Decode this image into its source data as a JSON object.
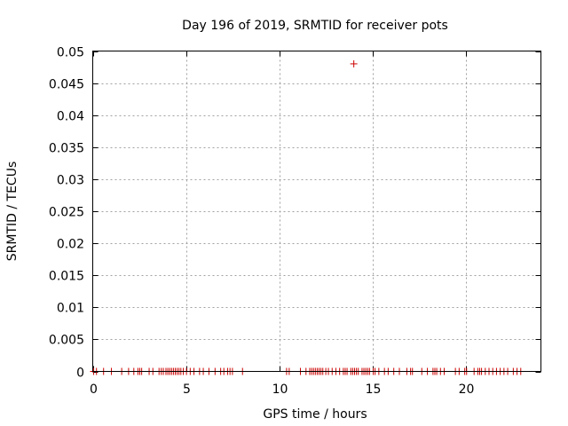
{
  "chart_data": {
    "type": "scatter",
    "title": "Day 196 of 2019, SRMTID for receiver pots",
    "xlabel": "GPS time / hours",
    "ylabel": "SRMTID / TECUs",
    "xlim": [
      0,
      24
    ],
    "ylim": [
      0,
      0.05
    ],
    "grid": true,
    "marker": "+",
    "color": "#cc0000",
    "x_ticks": [
      0,
      5,
      10,
      15,
      20
    ],
    "x_tick_labels": [
      "0",
      "5",
      "10",
      "15",
      "20"
    ],
    "y_ticks": [
      0,
      0.005,
      0.01,
      0.015,
      0.02,
      0.025,
      0.03,
      0.035,
      0.04,
      0.045,
      0.05
    ],
    "y_tick_labels": [
      "0",
      "0.005",
      "0.01",
      "0.015",
      "0.02",
      "0.025",
      "0.03",
      "0.035",
      "0.04",
      "0.045",
      "0.05"
    ],
    "points": [
      {
        "x": 13.98,
        "y": 0.048
      },
      {
        "x": 0.05,
        "y": 0
      },
      {
        "x": 0.2,
        "y": 0
      },
      {
        "x": 0.58,
        "y": 0
      },
      {
        "x": 1.0,
        "y": 0
      },
      {
        "x": 1.55,
        "y": 0
      },
      {
        "x": 1.92,
        "y": 0
      },
      {
        "x": 2.2,
        "y": 0
      },
      {
        "x": 2.42,
        "y": 0
      },
      {
        "x": 2.52,
        "y": 0
      },
      {
        "x": 2.62,
        "y": 0
      },
      {
        "x": 3.02,
        "y": 0
      },
      {
        "x": 3.22,
        "y": 0
      },
      {
        "x": 3.55,
        "y": 0
      },
      {
        "x": 3.67,
        "y": 0
      },
      {
        "x": 3.78,
        "y": 0
      },
      {
        "x": 3.92,
        "y": 0
      },
      {
        "x": 4.02,
        "y": 0
      },
      {
        "x": 4.12,
        "y": 0
      },
      {
        "x": 4.22,
        "y": 0
      },
      {
        "x": 4.32,
        "y": 0
      },
      {
        "x": 4.42,
        "y": 0
      },
      {
        "x": 4.52,
        "y": 0
      },
      {
        "x": 4.62,
        "y": 0
      },
      {
        "x": 4.72,
        "y": 0
      },
      {
        "x": 4.85,
        "y": 0
      },
      {
        "x": 5.02,
        "y": 0
      },
      {
        "x": 5.22,
        "y": 0
      },
      {
        "x": 5.42,
        "y": 0
      },
      {
        "x": 5.72,
        "y": 0
      },
      {
        "x": 5.92,
        "y": 0
      },
      {
        "x": 6.22,
        "y": 0
      },
      {
        "x": 6.55,
        "y": 0
      },
      {
        "x": 6.85,
        "y": 0
      },
      {
        "x": 7.02,
        "y": 0
      },
      {
        "x": 7.22,
        "y": 0
      },
      {
        "x": 7.35,
        "y": 0
      },
      {
        "x": 7.48,
        "y": 0
      },
      {
        "x": 8.02,
        "y": 0
      },
      {
        "x": 10.38,
        "y": 0
      },
      {
        "x": 10.52,
        "y": 0
      },
      {
        "x": 11.12,
        "y": 0
      },
      {
        "x": 11.42,
        "y": 0
      },
      {
        "x": 11.62,
        "y": 0
      },
      {
        "x": 11.72,
        "y": 0
      },
      {
        "x": 11.82,
        "y": 0
      },
      {
        "x": 11.92,
        "y": 0
      },
      {
        "x": 12.02,
        "y": 0
      },
      {
        "x": 12.12,
        "y": 0
      },
      {
        "x": 12.22,
        "y": 0
      },
      {
        "x": 12.32,
        "y": 0
      },
      {
        "x": 12.48,
        "y": 0
      },
      {
        "x": 12.62,
        "y": 0
      },
      {
        "x": 12.82,
        "y": 0
      },
      {
        "x": 13.02,
        "y": 0
      },
      {
        "x": 13.22,
        "y": 0
      },
      {
        "x": 13.42,
        "y": 0
      },
      {
        "x": 13.52,
        "y": 0
      },
      {
        "x": 13.62,
        "y": 0
      },
      {
        "x": 13.82,
        "y": 0
      },
      {
        "x": 13.92,
        "y": 0
      },
      {
        "x": 14.02,
        "y": 0
      },
      {
        "x": 14.12,
        "y": 0
      },
      {
        "x": 14.22,
        "y": 0
      },
      {
        "x": 14.42,
        "y": 0
      },
      {
        "x": 14.52,
        "y": 0
      },
      {
        "x": 14.62,
        "y": 0
      },
      {
        "x": 14.72,
        "y": 0
      },
      {
        "x": 14.82,
        "y": 0
      },
      {
        "x": 15.02,
        "y": 0
      },
      {
        "x": 15.12,
        "y": 0
      },
      {
        "x": 15.32,
        "y": 0
      },
      {
        "x": 15.62,
        "y": 0
      },
      {
        "x": 15.82,
        "y": 0
      },
      {
        "x": 16.12,
        "y": 0
      },
      {
        "x": 16.42,
        "y": 0
      },
      {
        "x": 16.82,
        "y": 0
      },
      {
        "x": 17.02,
        "y": 0
      },
      {
        "x": 17.12,
        "y": 0
      },
      {
        "x": 17.62,
        "y": 0
      },
      {
        "x": 17.92,
        "y": 0
      },
      {
        "x": 18.22,
        "y": 0
      },
      {
        "x": 18.32,
        "y": 0
      },
      {
        "x": 18.42,
        "y": 0
      },
      {
        "x": 18.62,
        "y": 0
      },
      {
        "x": 18.82,
        "y": 0
      },
      {
        "x": 19.42,
        "y": 0
      },
      {
        "x": 19.62,
        "y": 0
      },
      {
        "x": 19.92,
        "y": 0
      },
      {
        "x": 20.02,
        "y": 0
      },
      {
        "x": 20.42,
        "y": 0
      },
      {
        "x": 20.62,
        "y": 0
      },
      {
        "x": 20.72,
        "y": 0
      },
      {
        "x": 20.82,
        "y": 0
      },
      {
        "x": 21.02,
        "y": 0
      },
      {
        "x": 21.22,
        "y": 0
      },
      {
        "x": 21.42,
        "y": 0
      },
      {
        "x": 21.62,
        "y": 0
      },
      {
        "x": 21.82,
        "y": 0
      },
      {
        "x": 22.02,
        "y": 0
      },
      {
        "x": 22.22,
        "y": 0
      },
      {
        "x": 22.52,
        "y": 0
      },
      {
        "x": 22.72,
        "y": 0
      },
      {
        "x": 22.92,
        "y": 0
      }
    ]
  }
}
